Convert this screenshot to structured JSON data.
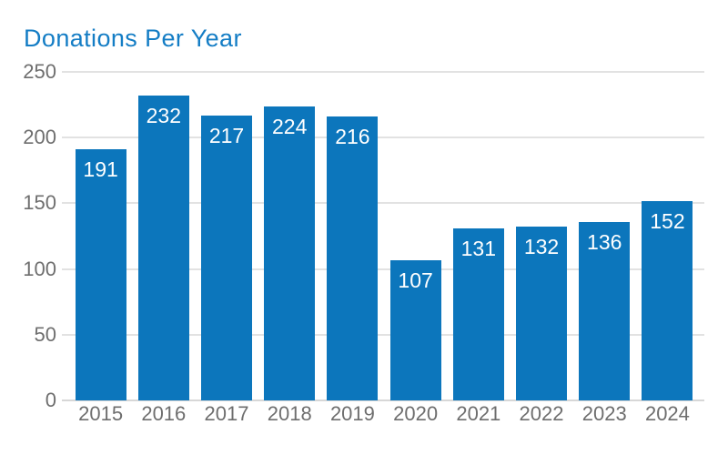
{
  "chart_data": {
    "type": "bar",
    "title": "Donations Per Year",
    "categories": [
      "2015",
      "2016",
      "2017",
      "2018",
      "2019",
      "2020",
      "2021",
      "2022",
      "2023",
      "2024"
    ],
    "values": [
      191,
      232,
      217,
      224,
      216,
      107,
      131,
      132,
      136,
      152
    ],
    "xlabel": "",
    "ylabel": "",
    "ylim": [
      0,
      250
    ],
    "yticks": [
      0,
      50,
      100,
      150,
      200,
      250
    ],
    "grid": true,
    "legend": false,
    "value_labels": "inside-top-white"
  },
  "colors": {
    "background": "#ffffff",
    "bar": "#0c76bc",
    "title": "#147dc5",
    "axis_label": "#6e6e6e",
    "gridline": "#e2e2e2",
    "baseline": "#d7d7d7",
    "value_label": "#ffffff"
  }
}
